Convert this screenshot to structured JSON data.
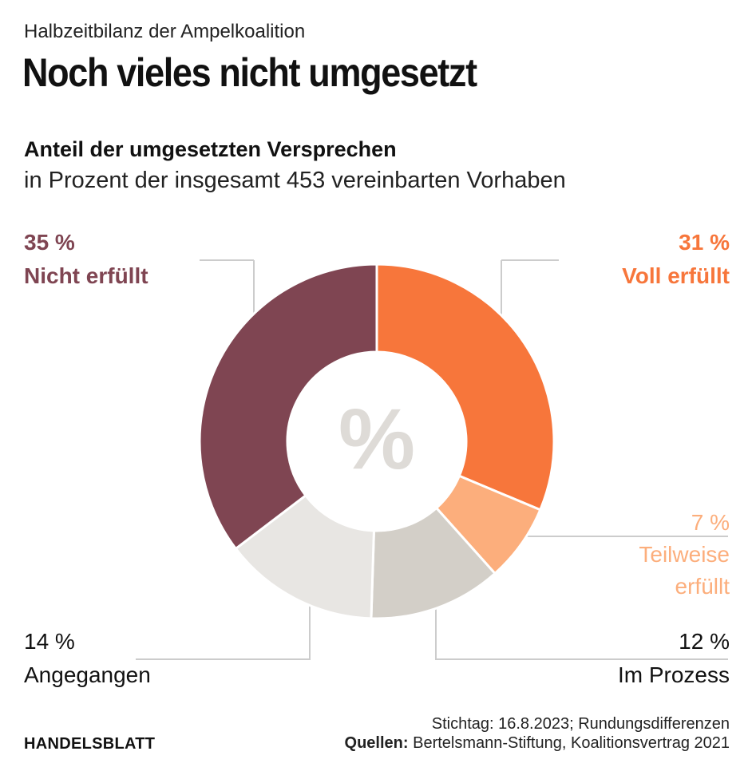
{
  "header": {
    "kicker": "Halbzeitbilanz der Ampelkoalition",
    "headline": "Noch vieles nicht umgesetzt"
  },
  "colors": {
    "voll": "#f7763b",
    "teilweise": "#fcae7c",
    "prozess": "#d3cfc8",
    "angegangen": "#e8e6e3",
    "nicht": "#7f4552",
    "center_symbol": "#dedbd7",
    "leader": "#cccccc"
  },
  "chart_data": {
    "type": "pie",
    "title": "Anteil der umgesetzten Versprechen",
    "subtitle": "in Prozent der insgesamt 453 vereinbarten Vorhaben",
    "center_symbol": "%",
    "unit": "%",
    "slices": [
      {
        "key": "voll",
        "value": 31,
        "value_label": "31 %",
        "label_lines": [
          "Voll erfüllt"
        ],
        "color": "#f7763b"
      },
      {
        "key": "teilweise",
        "value": 7,
        "value_label": "7 %",
        "label_lines": [
          "Teilweise",
          "erfüllt"
        ],
        "color": "#fcae7c"
      },
      {
        "key": "prozess",
        "value": 12,
        "value_label": "12 %",
        "label_lines": [
          "Im Prozess"
        ],
        "color": "#d3cfc8"
      },
      {
        "key": "angegangen",
        "value": 14,
        "value_label": "14 %",
        "label_lines": [
          "Angegangen"
        ],
        "color": "#e8e6e3"
      },
      {
        "key": "nicht",
        "value": 35,
        "value_label": "35 %",
        "label_lines": [
          "Nicht erfüllt"
        ],
        "color": "#7f4552"
      }
    ]
  },
  "footer": {
    "note": "Stichtag: 16.8.2023; Rundungsdifferenzen",
    "sources_label": "Quellen:",
    "sources_text": " Bertelsmann-Stiftung, Koalitionsvertrag 2021",
    "brand": "HANDELSBLATT"
  }
}
